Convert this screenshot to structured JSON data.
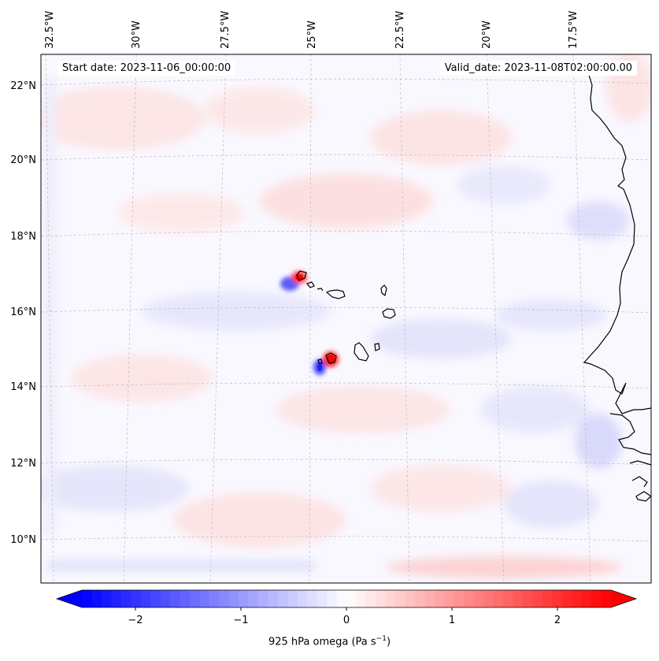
{
  "header": {
    "start_date": "Start date: 2023-11-06_00:00:00",
    "valid_date": "Valid_date: 2023-11-08T02:00:00.00"
  },
  "map": {
    "lon_labels": [
      "32.5°W",
      "30°W",
      "27.5°W",
      "25°W",
      "22.5°W",
      "20°W",
      "17.5°W"
    ],
    "lat_labels": [
      "22°N",
      "20°N",
      "18°N",
      "16°N",
      "14°N",
      "12°N",
      "10°N"
    ],
    "field": "925 hPa omega",
    "features": [
      "Cape Verde islands",
      "West African coastline"
    ]
  },
  "colorbar": {
    "label_text": "925 hPa omega (Pa s",
    "label_sup": "−1",
    "label_close": ")",
    "ticks": [
      "−2",
      "−1",
      "0",
      "1",
      "2"
    ],
    "tick_values": [
      -2,
      -1,
      0,
      1,
      2
    ],
    "range": [
      -2.7,
      2.7
    ],
    "extend": "both",
    "colormap": "bwr",
    "colors": {
      "low": "#0000ff",
      "mid": "#ffffff",
      "high": "#ff0000"
    }
  }
}
